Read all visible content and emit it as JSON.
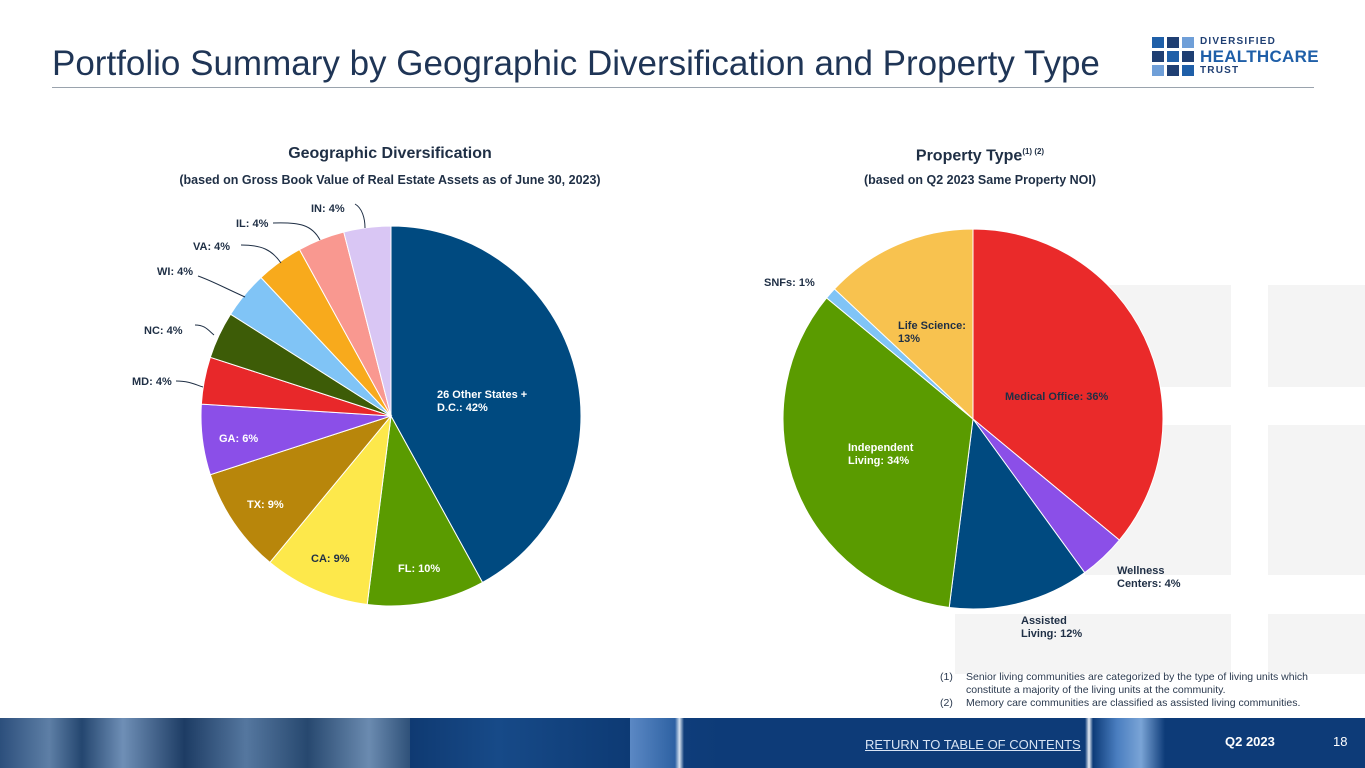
{
  "page": {
    "title": "Portfolio Summary by Geographic Diversification and Property Type",
    "page_number": "18",
    "quarter": "Q2 2023",
    "return_link": "RETURN TO TABLE OF CONTENTS"
  },
  "logo": {
    "line1": "DIVERSIFIED",
    "line2": "HEALTHCARE",
    "line3": "TRUST"
  },
  "notes": [
    {
      "num": "(1)",
      "text": "Senior living communities are categorized by the type of living units which constitute a majority of the living units at the community."
    },
    {
      "num": "(2)",
      "text": "Memory care communities are classified as assisted living communities."
    }
  ],
  "chart_data": [
    {
      "type": "pie",
      "title": "Geographic Diversification",
      "subtitle": "(based on Gross Book Value of Real Estate Assets as of June 30, 2023)",
      "start": "12 o'clock, clockwise",
      "slices": [
        {
          "label": "26 Other States + D.C.: 42%",
          "value": 42,
          "color": "#004a80"
        },
        {
          "label": "FL: 10%",
          "value": 10,
          "color": "#5a9b00"
        },
        {
          "label": "CA: 9%",
          "value": 9,
          "color": "#fde84b"
        },
        {
          "label": "TX: 9%",
          "value": 9,
          "color": "#b8860b"
        },
        {
          "label": "GA: 6%",
          "value": 6,
          "color": "#8b4fe8"
        },
        {
          "label": "MD: 4%",
          "value": 4,
          "color": "#e8282a"
        },
        {
          "label": "NC: 4%",
          "value": 4,
          "color": "#3d5c07"
        },
        {
          "label": "WI: 4%",
          "value": 4,
          "color": "#80c4f6"
        },
        {
          "label": "VA: 4%",
          "value": 4,
          "color": "#f8aa1c"
        },
        {
          "label": "IL: 4%",
          "value": 4,
          "color": "#f99890"
        },
        {
          "label": "IN: 4%",
          "value": 4,
          "color": "#d9c6f4"
        }
      ]
    },
    {
      "type": "pie",
      "title": "Property Type",
      "title_superscript": "(1) (2)",
      "subtitle": "(based on Q2 2023 Same Property NOI)",
      "start": "12 o'clock, clockwise",
      "slices": [
        {
          "label": "Medical Office: 36%",
          "value": 36,
          "color": "#ea2a2a"
        },
        {
          "label": "Wellness Centers: 4%",
          "value": 4,
          "color": "#8b4fe8"
        },
        {
          "label": "Assisted Living: 12%",
          "value": 12,
          "color": "#004a80"
        },
        {
          "label": "Independent Living: 34%",
          "value": 34,
          "color": "#5a9b00"
        },
        {
          "label": "SNFs: 1%",
          "value": 1,
          "color": "#80c4f6"
        },
        {
          "label": "Life Science: 13%",
          "value": 13,
          "color": "#f8c24f"
        }
      ]
    }
  ]
}
